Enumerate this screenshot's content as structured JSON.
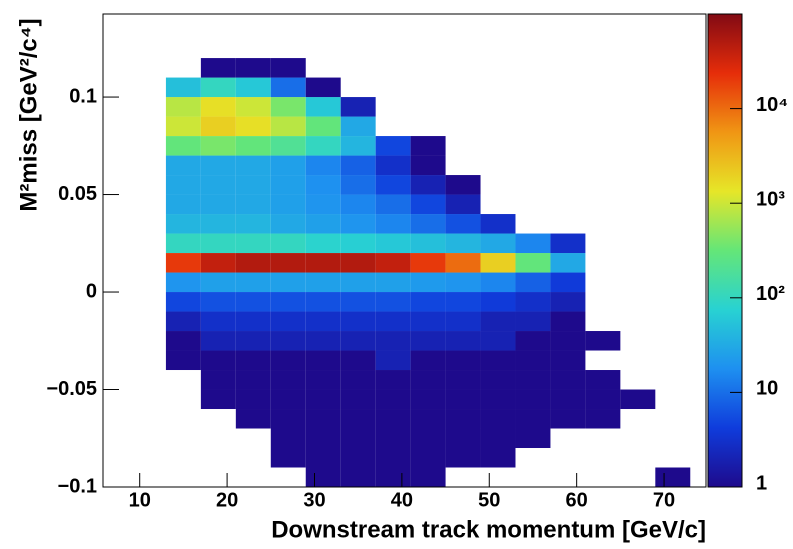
{
  "chart_data": {
    "type": "heatmap",
    "xlabel": "Downstream track momentum [GeV/c]",
    "ylabel": "M²miss [GeV²/c⁴]",
    "xbins": [
      13,
      17,
      21,
      25,
      29,
      33,
      37,
      41,
      45,
      49,
      53,
      57,
      61,
      65,
      69,
      73
    ],
    "ybins": [
      -0.1,
      -0.09,
      -0.08,
      -0.07,
      -0.06,
      -0.05,
      -0.04,
      -0.03,
      -0.02,
      -0.01,
      0,
      0.01,
      0.02,
      0.03,
      0.04,
      0.05,
      0.06,
      0.07,
      0.08,
      0.09,
      0.1,
      0.11,
      0.12
    ],
    "z": [
      [
        null,
        null,
        null,
        null,
        1,
        1,
        1,
        1,
        null,
        null,
        null,
        null,
        null,
        null,
        1
      ],
      [
        null,
        null,
        null,
        1,
        1,
        1,
        1,
        1,
        1,
        1,
        null,
        null,
        null,
        null,
        null
      ],
      [
        null,
        null,
        null,
        1,
        1,
        1,
        1,
        1,
        1,
        1,
        1,
        null,
        null,
        null,
        null
      ],
      [
        null,
        null,
        1,
        1,
        1,
        1,
        1,
        1,
        1,
        1,
        1,
        1,
        1,
        null,
        null
      ],
      [
        null,
        1,
        1,
        1,
        1,
        1,
        1,
        1,
        1,
        1,
        1,
        1,
        1,
        1,
        null
      ],
      [
        null,
        1,
        1,
        1,
        1,
        1,
        1,
        1,
        1,
        1,
        1,
        1,
        1,
        null,
        null
      ],
      [
        1,
        1,
        1,
        1,
        1,
        1,
        2,
        1,
        1,
        1,
        1,
        1,
        null,
        null,
        null
      ],
      [
        1,
        2,
        2,
        2,
        2,
        2,
        2,
        2,
        2,
        2,
        1,
        1,
        1,
        null,
        null
      ],
      [
        2,
        3,
        3,
        3,
        3,
        3,
        3,
        3,
        3,
        2,
        2,
        1,
        null,
        null,
        null
      ],
      [
        5,
        6,
        6,
        6,
        6,
        6,
        6,
        5,
        5,
        4,
        3,
        2,
        null,
        null,
        null
      ],
      [
        20,
        25,
        25,
        25,
        25,
        25,
        25,
        22,
        20,
        15,
        8,
        4,
        null,
        null,
        null
      ],
      [
        20000,
        40000,
        50000,
        50000,
        50000,
        50000,
        40000,
        20000,
        10000,
        2000,
        300,
        30,
        null,
        null,
        null
      ],
      [
        100,
        100,
        100,
        100,
        80,
        70,
        60,
        50,
        40,
        30,
        15,
        3,
        null,
        null,
        null
      ],
      [
        40,
        40,
        40,
        30,
        25,
        20,
        15,
        10,
        6,
        3,
        null,
        null,
        null,
        null,
        null
      ],
      [
        30,
        30,
        30,
        25,
        20,
        15,
        10,
        5,
        2,
        null,
        null,
        null,
        null,
        null,
        null
      ],
      [
        30,
        30,
        30,
        25,
        18,
        10,
        5,
        2,
        1,
        null,
        null,
        null,
        null,
        null,
        null
      ],
      [
        30,
        30,
        30,
        25,
        15,
        8,
        3,
        1,
        null,
        null,
        null,
        null,
        null,
        null,
        null
      ],
      [
        300,
        400,
        300,
        200,
        100,
        40,
        5,
        1,
        null,
        null,
        null,
        null,
        null,
        null,
        null
      ],
      [
        1000,
        2000,
        1500,
        800,
        300,
        30,
        null,
        null,
        null,
        null,
        null,
        null,
        null,
        null,
        null
      ],
      [
        800,
        1500,
        1000,
        400,
        60,
        2,
        null,
        null,
        null,
        null,
        null,
        null,
        null,
        null,
        null
      ],
      [
        50,
        100,
        60,
        10,
        1,
        null,
        null,
        null,
        null,
        null,
        null,
        null,
        null,
        null,
        null
      ],
      [
        null,
        1,
        1,
        1,
        null,
        null,
        null,
        null,
        null,
        null,
        null,
        null,
        null,
        null,
        null
      ]
    ],
    "xlim": [
      5.8,
      74.8
    ],
    "xticks": [
      10,
      20,
      30,
      40,
      50,
      60,
      70
    ],
    "ylim": [
      -0.1,
      0.1426
    ],
    "yticks": [
      {
        "value": -0.1,
        "label": "−0.1"
      },
      {
        "value": -0.05,
        "label": "−0.05"
      },
      0,
      0.05,
      0.1
    ],
    "zscale": "log",
    "zlim": [
      1,
      100000
    ],
    "zticks": [
      1,
      10,
      {
        "value": 100,
        "label": "10²"
      },
      {
        "value": 1000,
        "label": "10³"
      },
      {
        "value": 10000,
        "label": "10⁴"
      }
    ],
    "colorscale": [
      "#1e0a8c",
      "#0f3cdc",
      "#1e90f0",
      "#28d2d2",
      "#64e678",
      "#e6e628",
      "#f09614",
      "#e62d0a",
      "#820a14"
    ]
  }
}
